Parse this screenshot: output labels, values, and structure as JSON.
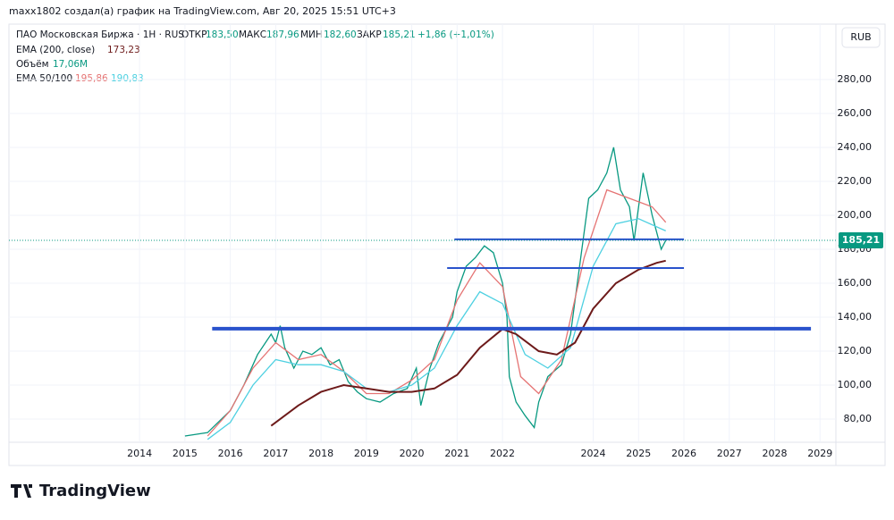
{
  "header": {
    "title": "maxx1802 создал(а) график на TradingView.com, Авг 20, 2025 15:51 UTC+3"
  },
  "legend": {
    "symbol": "ПАО Московская Биржа · 1Н · RUS",
    "open_label": "ОТКР",
    "open": "183,50",
    "high_label": "МАКС",
    "high": "187,96",
    "low_label": "МИН",
    "low": "182,60",
    "close_label": "ЗАКР",
    "close": "185,21",
    "change": "+1,86 (+1,01%)",
    "ema200_label": "EMA (200, close)",
    "ema200": "173,23",
    "volume_label": "Объём",
    "volume": "17,06M",
    "ema50_100_label": "EMA 50/100",
    "ema50": "195,86",
    "ema100": "190,83"
  },
  "currency_button": "RUB",
  "footer": {
    "brand": "TradingView"
  },
  "chart_data": {
    "type": "line",
    "xlim": [
      2011.12,
      2029.35
    ],
    "xticks": [
      2014,
      2015,
      2016,
      2017,
      2018,
      2019,
      2020,
      2021,
      2022,
      2024,
      2025,
      2026,
      2027,
      2028,
      2029
    ],
    "ylim": [
      66.3,
      312.6
    ],
    "yticks": [
      {
        "value": 80,
        "label": "80,00"
      },
      {
        "value": 100,
        "label": "100,00"
      },
      {
        "value": 120,
        "label": "120,00"
      },
      {
        "value": 140,
        "label": "140,00"
      },
      {
        "value": 160,
        "label": "160,00"
      },
      {
        "value": 180,
        "label": "180,00"
      },
      {
        "value": 200,
        "label": "200,00"
      },
      {
        "value": 220,
        "label": "220,00"
      },
      {
        "value": 240,
        "label": "240,00"
      },
      {
        "value": 260,
        "label": "260,00"
      },
      {
        "value": 280,
        "label": "280,00"
      }
    ],
    "last_price": {
      "value": 185.21,
      "label": "185,21"
    },
    "series": [
      {
        "color": "#089981",
        "x": [
          2015.0,
          2015.5,
          2016.0,
          2016.3,
          2016.6,
          2016.9,
          2017.0,
          2017.1,
          2017.2,
          2017.4,
          2017.6,
          2017.8,
          2018.0,
          2018.2,
          2018.4,
          2018.6,
          2018.8,
          2019.0,
          2019.3,
          2019.6,
          2019.9,
          2020.1,
          2020.2,
          2020.4,
          2020.6,
          2020.9,
          2021.0,
          2021.2,
          2021.4,
          2021.6,
          2021.8,
          2022.0,
          2022.1,
          2022.15,
          2022.3,
          2022.5,
          2022.7,
          2022.8,
          2023.0,
          2023.3,
          2023.5,
          2023.7,
          2023.9,
          2024.1,
          2024.3,
          2024.45,
          2024.6,
          2024.8,
          2024.9,
          2025.1,
          2025.3,
          2025.5,
          2025.6
        ],
        "values": [
          70,
          72,
          85,
          100,
          118,
          130,
          125,
          135,
          122,
          110,
          120,
          118,
          122,
          112,
          115,
          102,
          96,
          92,
          90,
          95,
          98,
          110,
          88,
          110,
          125,
          140,
          155,
          170,
          175,
          182,
          178,
          160,
          140,
          105,
          90,
          82,
          75,
          90,
          105,
          112,
          130,
          170,
          210,
          215,
          225,
          240,
          215,
          205,
          185,
          225,
          200,
          180,
          185.21
        ]
      },
      {
        "color": "#e57373",
        "x": [
          2015.5,
          2016.0,
          2016.5,
          2017.0,
          2017.5,
          2018.0,
          2018.5,
          2019.0,
          2019.5,
          2020.0,
          2020.5,
          2021.0,
          2021.5,
          2022.0,
          2022.4,
          2022.8,
          2023.3,
          2023.8,
          2024.3,
          2024.8,
          2025.3,
          2025.6
        ],
        "values": [
          70,
          85,
          110,
          125,
          115,
          118,
          108,
          95,
          95,
          103,
          115,
          150,
          172,
          158,
          105,
          95,
          115,
          175,
          215,
          210,
          205,
          195.86
        ]
      },
      {
        "color": "#4dd0e1",
        "x": [
          2015.5,
          2016.0,
          2016.5,
          2017.0,
          2017.5,
          2018.0,
          2018.5,
          2019.0,
          2019.5,
          2020.0,
          2020.5,
          2021.0,
          2021.5,
          2022.0,
          2022.5,
          2023.0,
          2023.5,
          2024.0,
          2024.5,
          2025.0,
          2025.6
        ],
        "values": [
          68,
          78,
          100,
          115,
          112,
          112,
          108,
          98,
          96,
          100,
          110,
          135,
          155,
          148,
          118,
          110,
          122,
          170,
          195,
          198,
          190.83
        ]
      },
      {
        "color": "#6d1a1a",
        "x": [
          2016.9,
          2017.5,
          2018.0,
          2018.5,
          2019.0,
          2019.5,
          2020.0,
          2020.5,
          2021.0,
          2021.5,
          2022.0,
          2022.3,
          2022.8,
          2023.2,
          2023.6,
          2024.0,
          2024.5,
          2025.0,
          2025.4,
          2025.6
        ],
        "values": [
          76,
          88,
          96,
          100,
          98,
          96,
          96,
          98,
          106,
          122,
          133,
          130,
          120,
          118,
          125,
          145,
          160,
          168,
          172,
          173.23
        ]
      }
    ],
    "levels": [
      {
        "value": 185.8,
        "from": 2020.94,
        "to": 2026.0,
        "color": "#2952cc"
      },
      {
        "value": 168.9,
        "from": 2020.78,
        "to": 2026.0,
        "color": "#2952cc"
      },
      {
        "value": 133.2,
        "from": 2015.6,
        "to": 2028.8,
        "color": "#2952cc"
      }
    ]
  }
}
